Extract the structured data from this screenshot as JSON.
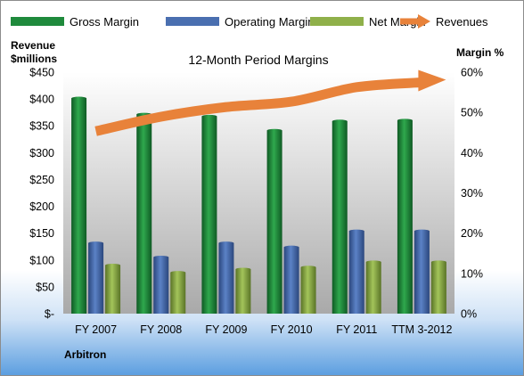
{
  "legend": {
    "items": [
      {
        "label": "Gross Margin",
        "swatch": "bar",
        "color": "#1f8a3c"
      },
      {
        "label": "Operating Margin",
        "swatch": "bar",
        "color": "#4a6fb0"
      },
      {
        "label": "Net Margin",
        "swatch": "bar",
        "color": "#8fb04a"
      },
      {
        "label": "Revenues",
        "swatch": "arrow",
        "color": "#e8823a"
      }
    ]
  },
  "left_axis_title_line1": "Revenue",
  "left_axis_title_line2": "$millions",
  "right_axis_title": "Margin %",
  "company": "Arbitron",
  "chart_data": {
    "type": "bar",
    "title": "12-Month Period Margins",
    "categories": [
      "FY 2007",
      "FY 2008",
      "FY 2009",
      "FY 2010",
      "FY 2011",
      "TTM 3-2012"
    ],
    "left_axis": {
      "label": "Revenue $millions",
      "ylim": [
        0,
        450
      ],
      "ticks": [
        0,
        50,
        100,
        150,
        200,
        250,
        300,
        350,
        400,
        450
      ],
      "tick_labels": [
        "$-",
        "$50",
        "$100",
        "$150",
        "$200",
        "$250",
        "$300",
        "$350",
        "$400",
        "$450"
      ]
    },
    "right_axis": {
      "label": "Margin %",
      "ylim": [
        0,
        60
      ],
      "ticks": [
        0,
        10,
        20,
        30,
        40,
        50,
        60
      ],
      "tick_labels": [
        "0%",
        "10%",
        "20%",
        "30%",
        "40%",
        "50%",
        "60%"
      ]
    },
    "series": [
      {
        "name": "Gross Margin",
        "axis": "right",
        "color": "#1f8a3c",
        "values": [
          53.5,
          49.5,
          49.0,
          45.5,
          47.8,
          48.0
        ]
      },
      {
        "name": "Operating Margin",
        "axis": "right",
        "color": "#4a6fb0",
        "values": [
          17.5,
          14.0,
          17.5,
          16.5,
          20.5,
          20.5
        ]
      },
      {
        "name": "Net Margin",
        "axis": "right",
        "color": "#8fb04a",
        "values": [
          12.0,
          10.2,
          11.0,
          11.5,
          12.8,
          12.8
        ]
      },
      {
        "name": "Revenues",
        "axis": "left",
        "type": "arrow-line",
        "color": "#e8823a",
        "values": [
          340,
          367,
          385,
          395,
          422,
          431
        ]
      }
    ],
    "grid": false,
    "legend_position": "top"
  }
}
